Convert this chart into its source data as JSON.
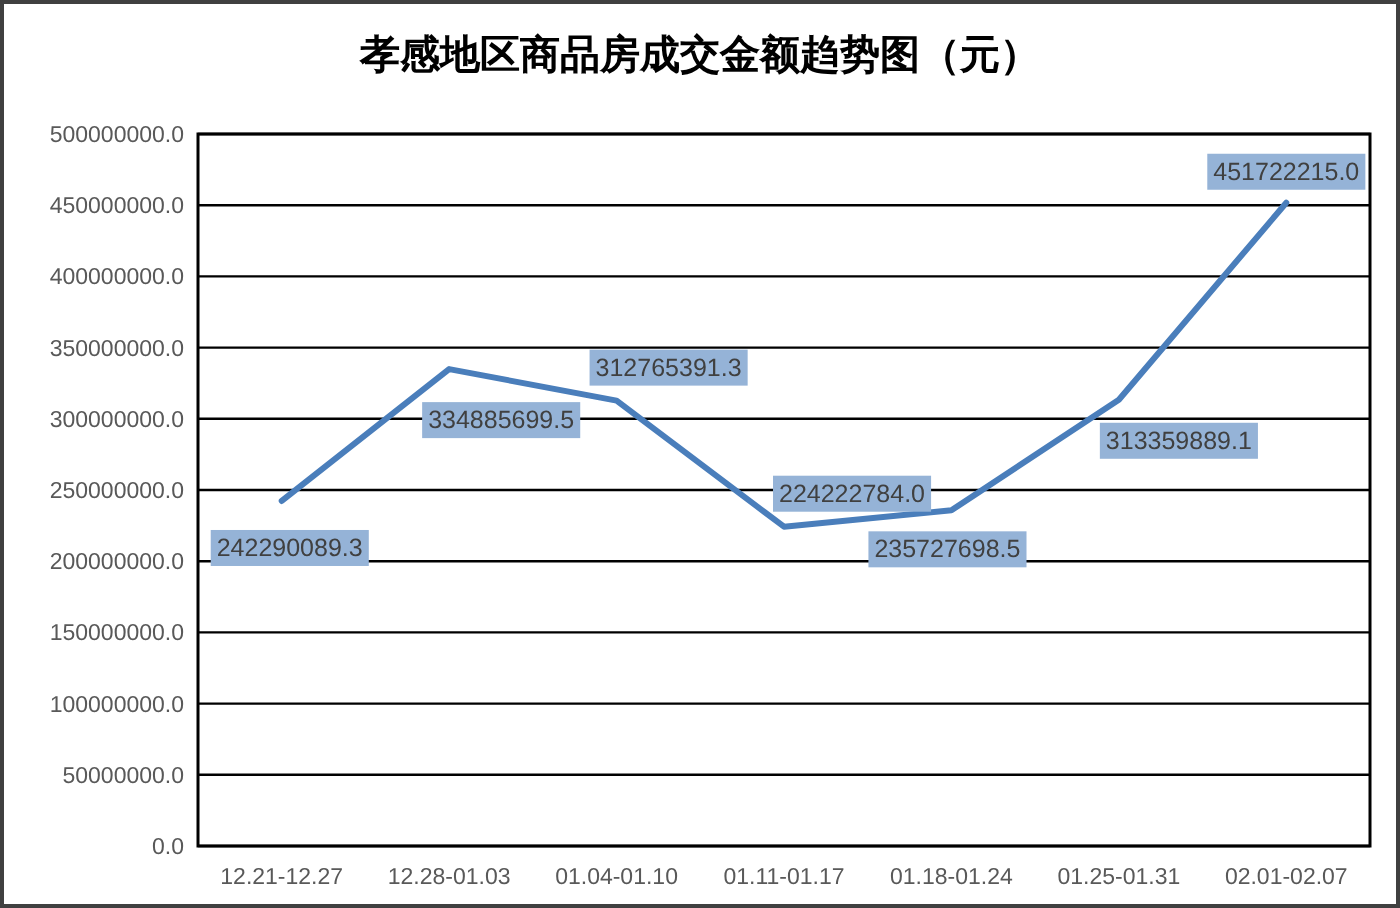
{
  "chart_data": {
    "type": "line",
    "title": "孝感地区商品房成交金额趋势图（元）",
    "categories": [
      "12.21-12.27",
      "12.28-01.03",
      "01.04-01.10",
      "01.11-01.17",
      "01.18-01.24",
      "01.25-01.31",
      "02.01-02.07"
    ],
    "series": [
      {
        "color": "#4a7ebb",
        "values": [
          242290089.3,
          334885699.5,
          312765391.3,
          224222784.0,
          235727698.5,
          313359889.1,
          451722215.0
        ],
        "value_labels": [
          "242290089.3",
          "334885699.5",
          "312765391.3",
          "224222784.0",
          "235727698.5",
          "313359889.1",
          "451722215.0"
        ]
      }
    ],
    "ylim": [
      0,
      500000000
    ],
    "yticks": [
      {
        "value": 0,
        "label": "0.0"
      },
      {
        "value": 50000000,
        "label": "50000000.0"
      },
      {
        "value": 100000000,
        "label": "100000000.0"
      },
      {
        "value": 150000000,
        "label": "150000000.0"
      },
      {
        "value": 200000000,
        "label": "200000000.0"
      },
      {
        "value": 250000000,
        "label": "250000000.0"
      },
      {
        "value": 300000000,
        "label": "300000000.0"
      },
      {
        "value": 350000000,
        "label": "350000000.0"
      },
      {
        "value": 400000000,
        "label": "400000000.0"
      },
      {
        "value": 450000000,
        "label": "450000000.0"
      },
      {
        "value": 500000000,
        "label": "500000000.0"
      }
    ],
    "grid": "y"
  }
}
